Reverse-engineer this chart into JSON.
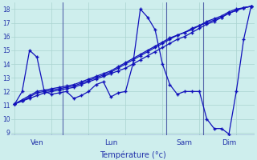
{
  "background_color": "#ceeeed",
  "grid_color": "#aad4d0",
  "line_color": "#1111bb",
  "xlabel": "Température (°c)",
  "ylim": [
    8.8,
    18.5
  ],
  "yticks": [
    9,
    10,
    11,
    12,
    13,
    14,
    15,
    16,
    17,
    18
  ],
  "day_labels": [
    "Ven",
    "Lun",
    "Sam",
    "Dim"
  ],
  "vline_x": [
    0.22,
    0.47,
    0.76
  ],
  "series_jagged": [
    11.1,
    12.0,
    15.0,
    14.5,
    12.0,
    11.8,
    11.9,
    12.0,
    11.5,
    11.7,
    12.0,
    12.5,
    12.7,
    11.6,
    11.9,
    12.0,
    14.0,
    18.0,
    17.4,
    16.5,
    14.0,
    12.5,
    11.8,
    12.0,
    12.0,
    12.0,
    10.0,
    9.3,
    9.3,
    8.9,
    12.0,
    15.8,
    18.2
  ],
  "series_trend1": [
    11.1,
    11.3,
    11.5,
    11.7,
    11.9,
    12.0,
    12.1,
    12.2,
    12.3,
    12.5,
    12.7,
    12.9,
    13.1,
    13.3,
    13.5,
    13.7,
    14.0,
    14.3,
    14.6,
    14.9,
    15.2,
    15.5,
    15.8,
    16.0,
    16.3,
    16.6,
    16.9,
    17.1,
    17.4,
    17.7,
    17.9,
    18.1,
    18.2
  ],
  "series_trend2": [
    11.1,
    11.4,
    11.7,
    12.0,
    12.1,
    12.2,
    12.3,
    12.4,
    12.5,
    12.7,
    12.9,
    13.1,
    13.3,
    13.5,
    13.8,
    14.1,
    14.4,
    14.7,
    15.0,
    15.3,
    15.6,
    15.9,
    16.1,
    16.3,
    16.5,
    16.8,
    17.0,
    17.2,
    17.4,
    17.7,
    17.9,
    18.1,
    18.2
  ],
  "series_trend3": [
    11.1,
    11.3,
    11.6,
    11.9,
    12.0,
    12.1,
    12.2,
    12.3,
    12.4,
    12.6,
    12.8,
    13.0,
    13.2,
    13.4,
    13.7,
    14.0,
    14.3,
    14.6,
    14.9,
    15.2,
    15.5,
    15.8,
    16.1,
    16.3,
    16.6,
    16.8,
    17.1,
    17.3,
    17.5,
    17.8,
    18.0,
    18.1,
    18.2
  ],
  "n_points": 33
}
